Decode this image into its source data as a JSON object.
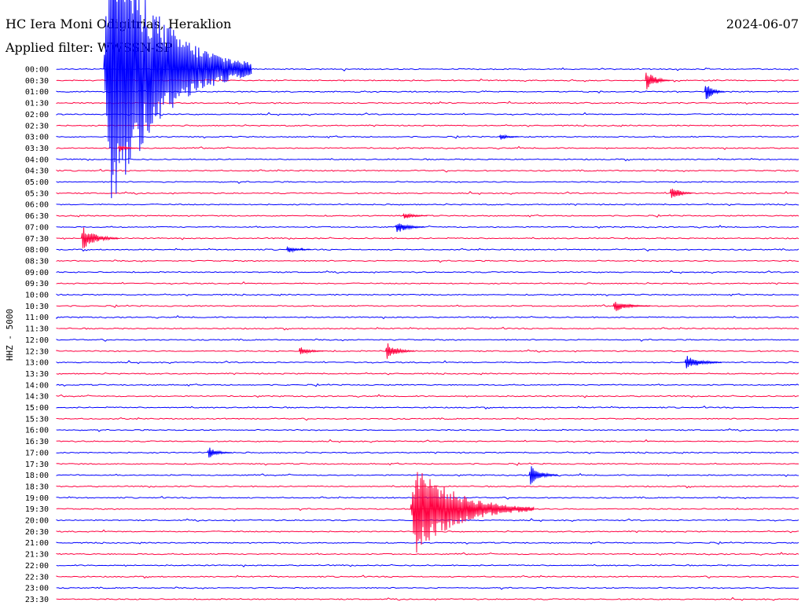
{
  "header": {
    "station": "HC Iera Moni Odigitrias, Heraklion",
    "date": "2024-06-07",
    "filter": "Applied filter: WWSSN-SP"
  },
  "axis": {
    "ylabel": "HHZ - 5000"
  },
  "colors": {
    "even_row": "#0000ff",
    "odd_row": "#ff0040",
    "background": "#ffffff",
    "text": "#000000"
  },
  "chart_data": {
    "type": "helicorder",
    "title": "HC Iera Moni Odigitrias, Heraklion",
    "date": "2024-06-07",
    "filter": "WWSSN-SP",
    "ylabel": "HHZ - 5000",
    "row_minutes": 30,
    "row_labels": [
      "00:00",
      "00:30",
      "01:00",
      "01:30",
      "02:00",
      "02:30",
      "03:00",
      "03:30",
      "04:00",
      "04:30",
      "05:00",
      "05:30",
      "06:00",
      "06:30",
      "07:00",
      "07:30",
      "08:00",
      "08:30",
      "09:00",
      "09:30",
      "10:00",
      "10:30",
      "11:00",
      "11:30",
      "12:00",
      "12:30",
      "13:00",
      "13:30",
      "14:00",
      "14:30",
      "15:00",
      "15:30",
      "16:00",
      "16:30",
      "17:00",
      "17:30",
      "18:00",
      "18:30",
      "19:00",
      "19:30",
      "20:00",
      "20:30",
      "21:00",
      "21:30",
      "22:00",
      "22:30",
      "23:00",
      "23:30"
    ],
    "events": [
      {
        "row": 0,
        "minute": 1.9,
        "amp": 16,
        "dur": 6.0,
        "label": "large event"
      },
      {
        "row": 1,
        "minute": 23.8,
        "amp": 1.2,
        "dur": 1.0
      },
      {
        "row": 2,
        "minute": 26.2,
        "amp": 1.1,
        "dur": 0.8
      },
      {
        "row": 6,
        "minute": 17.9,
        "amp": 0.4,
        "dur": 0.8
      },
      {
        "row": 7,
        "minute": 2.5,
        "amp": 0.4,
        "dur": 0.8
      },
      {
        "row": 11,
        "minute": 24.8,
        "amp": 0.9,
        "dur": 0.9
      },
      {
        "row": 13,
        "minute": 14.0,
        "amp": 0.4,
        "dur": 1.0
      },
      {
        "row": 14,
        "minute": 13.7,
        "amp": 0.7,
        "dur": 1.2
      },
      {
        "row": 15,
        "minute": 1.0,
        "amp": 1.2,
        "dur": 1.5
      },
      {
        "row": 16,
        "minute": 9.3,
        "amp": 0.4,
        "dur": 1.0
      },
      {
        "row": 21,
        "minute": 22.5,
        "amp": 0.6,
        "dur": 1.5
      },
      {
        "row": 25,
        "minute": 9.8,
        "amp": 0.5,
        "dur": 1.0
      },
      {
        "row": 25,
        "minute": 13.3,
        "amp": 0.9,
        "dur": 1.2
      },
      {
        "row": 26,
        "minute": 25.4,
        "amp": 0.8,
        "dur": 1.5
      },
      {
        "row": 34,
        "minute": 6.1,
        "amp": 0.6,
        "dur": 1.0
      },
      {
        "row": 36,
        "minute": 19.1,
        "amp": 1.1,
        "dur": 1.2
      },
      {
        "row": 39,
        "minute": 14.3,
        "amp": 4.8,
        "dur": 5.0
      },
      {
        "row": 39,
        "minute": 16.6,
        "amp": 0.5,
        "dur": 1.0
      }
    ]
  }
}
